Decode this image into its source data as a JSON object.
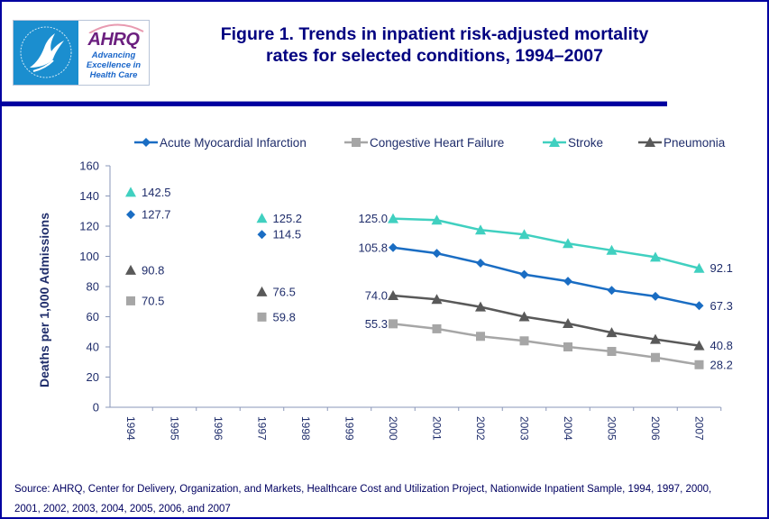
{
  "header": {
    "logo": {
      "left_icon": "hhs-eagle-logo-icon",
      "brand": "AHRQ",
      "tagline": [
        "Advancing",
        "Excellence in",
        "Health Care"
      ]
    },
    "title_lines": [
      "Figure 1. Trends in inpatient risk-adjusted mortality",
      "rates for selected conditions, 1994–2007"
    ]
  },
  "footer": {
    "source_lines": [
      "Source:  AHRQ, Center for Delivery, Organization, and Markets, Healthcare Cost and Utilization Project, Nationwide Inpatient Sample, 1994, 1997, 2000,",
      "2001, 2002, 2003, 2004, 2005, 2006, and 2007"
    ]
  },
  "colors": {
    "frame": "#0000a0",
    "title": "#000080",
    "axis_text": "#1f2d6b",
    "axis_line": "#8a97b8"
  },
  "chart_data": {
    "type": "line",
    "title": "Figure 1. Trends in inpatient risk-adjusted mortality rates for selected conditions, 1994–2007",
    "xlabel": "",
    "ylabel": "Deaths per 1,000 Admissions",
    "ylim": [
      0,
      160
    ],
    "yticks": [
      0,
      20,
      40,
      60,
      80,
      100,
      120,
      140,
      160
    ],
    "categories": [
      "1994",
      "1995",
      "1996",
      "1997",
      "1998",
      "1999",
      "2000",
      "2001",
      "2002",
      "2003",
      "2004",
      "2005",
      "2006",
      "2007"
    ],
    "grid": false,
    "legend_position": "top",
    "series": [
      {
        "name": "Acute Myocardial Infarction",
        "color": "#1a6dc3",
        "marker": "diamond",
        "values": [
          127.7,
          null,
          null,
          114.5,
          null,
          null,
          105.8,
          102.0,
          95.5,
          88.0,
          83.5,
          77.5,
          73.5,
          67.3
        ],
        "labels": {
          "1994": "127.7",
          "1997": "114.5",
          "2000": "105.8",
          "2007": "67.3"
        }
      },
      {
        "name": "Congestive Heart Failure",
        "color": "#a6a6a6",
        "marker": "square",
        "values": [
          70.5,
          null,
          null,
          59.8,
          null,
          null,
          55.3,
          52.0,
          47.0,
          44.0,
          40.0,
          37.0,
          33.0,
          28.2
        ],
        "labels": {
          "1994": "70.5",
          "1997": "59.8",
          "2000": "55.3",
          "2007": "28.2"
        }
      },
      {
        "name": "Stroke",
        "color": "#40d0c0",
        "marker": "triangle",
        "values": [
          142.5,
          null,
          null,
          125.2,
          null,
          null,
          125.0,
          124.0,
          117.5,
          114.5,
          108.5,
          104.0,
          99.5,
          92.1
        ],
        "labels": {
          "1994": "142.5",
          "1997": "125.2",
          "2000": "125.0",
          "2007": "92.1"
        }
      },
      {
        "name": "Pneumonia",
        "color": "#595959",
        "marker": "triangle",
        "values": [
          90.8,
          null,
          null,
          76.5,
          null,
          null,
          74.0,
          71.5,
          66.5,
          60.0,
          55.5,
          49.5,
          45.0,
          40.8
        ],
        "labels": {
          "1994": "90.8",
          "1997": "76.5",
          "2000": "74.0",
          "2007": "40.8"
        }
      }
    ]
  }
}
